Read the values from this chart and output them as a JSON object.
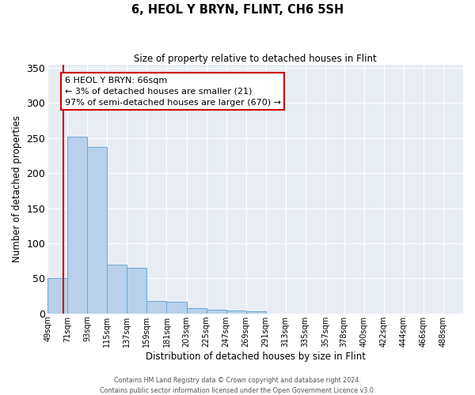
{
  "title": "6, HEOL Y BRYN, FLINT, CH6 5SH",
  "subtitle": "Size of property relative to detached houses in Flint",
  "xlabel": "Distribution of detached houses by size in Flint",
  "ylabel": "Number of detached properties",
  "bin_labels": [
    "49sqm",
    "71sqm",
    "93sqm",
    "115sqm",
    "137sqm",
    "159sqm",
    "181sqm",
    "203sqm",
    "225sqm",
    "247sqm",
    "269sqm",
    "291sqm",
    "313sqm",
    "335sqm",
    "357sqm",
    "378sqm",
    "400sqm",
    "422sqm",
    "444sqm",
    "466sqm",
    "488sqm"
  ],
  "bar_heights": [
    50,
    252,
    237,
    69,
    65,
    18,
    17,
    8,
    5,
    4,
    3,
    0,
    0,
    0,
    0,
    0,
    0,
    0,
    0,
    0,
    0
  ],
  "bar_color": "#b8d0ea",
  "bar_edge_color": "#6aaad4",
  "background_color": "#e8edf4",
  "ylim": [
    0,
    355
  ],
  "yticks": [
    0,
    50,
    100,
    150,
    200,
    250,
    300,
    350
  ],
  "property_line_color": "#cc0000",
  "annotation_text": "6 HEOL Y BRYN: 66sqm\n← 3% of detached houses are smaller (21)\n97% of semi-detached houses are larger (670) →",
  "annotation_box_color": "#ffffff",
  "annotation_box_edge": "#cc0000",
  "footer_line1": "Contains HM Land Registry data © Crown copyright and database right 2024.",
  "footer_line2": "Contains public sector information licensed under the Open Government Licence v3.0.",
  "bin_starts": [
    49,
    71,
    93,
    115,
    137,
    159,
    181,
    203,
    225,
    247,
    269,
    291,
    313,
    335,
    357,
    378,
    400,
    422,
    444,
    466,
    488
  ],
  "bin_width": 22,
  "x_min": 49,
  "x_max": 510,
  "property_sqm": 66
}
